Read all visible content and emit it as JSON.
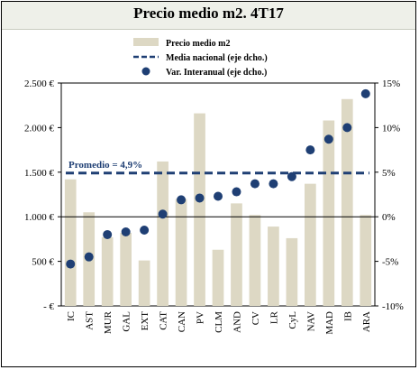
{
  "title": "Precio medio m2. 4T17",
  "colors": {
    "bar": "#ddd8c4",
    "line": "#1f3f74",
    "dot": "#1f3f74"
  },
  "legend": {
    "bar": "Precio medio m2",
    "line": "Media nacional (eje dcho.)",
    "dot": "Var. Interanual (eje dcho.)"
  },
  "annotation": "Promedio = 4,9%",
  "chart_data": {
    "type": "bar",
    "categories": [
      "IC",
      "AST",
      "MUR",
      "GAL",
      "EXT",
      "CAT",
      "CAN",
      "PV",
      "CLM",
      "AND",
      "CV",
      "LR",
      "CyL",
      "NAV",
      "MAD",
      "IB",
      "ARA"
    ],
    "series": [
      {
        "name": "Precio medio m2",
        "type": "bar",
        "axis": "left",
        "values": [
          1420,
          1050,
          770,
          820,
          510,
          1620,
          1200,
          2160,
          630,
          1150,
          1020,
          890,
          760,
          1370,
          2080,
          2320,
          1020
        ]
      },
      {
        "name": "Var. Interanual (eje dcho.)",
        "type": "scatter",
        "axis": "right",
        "values": [
          -5.3,
          -4.5,
          -2.0,
          -1.7,
          -1.5,
          0.3,
          1.9,
          2.1,
          2.3,
          2.8,
          3.7,
          3.7,
          4.5,
          7.5,
          8.7,
          10.0,
          13.8
        ]
      },
      {
        "name": "Media nacional (eje dcho.)",
        "type": "line",
        "axis": "right",
        "value": 4.9
      }
    ],
    "y_left": {
      "ticks": [
        "2.500 €",
        "2.000 €",
        "1.500 €",
        "1.000 €",
        "500 €",
        "- €"
      ],
      "min": 0,
      "max": 2500
    },
    "y_right": {
      "ticks": [
        "15%",
        "10%",
        "5%",
        "0%",
        "-5%",
        "-10%"
      ],
      "min": -10,
      "max": 15
    },
    "legend_position": "top"
  }
}
